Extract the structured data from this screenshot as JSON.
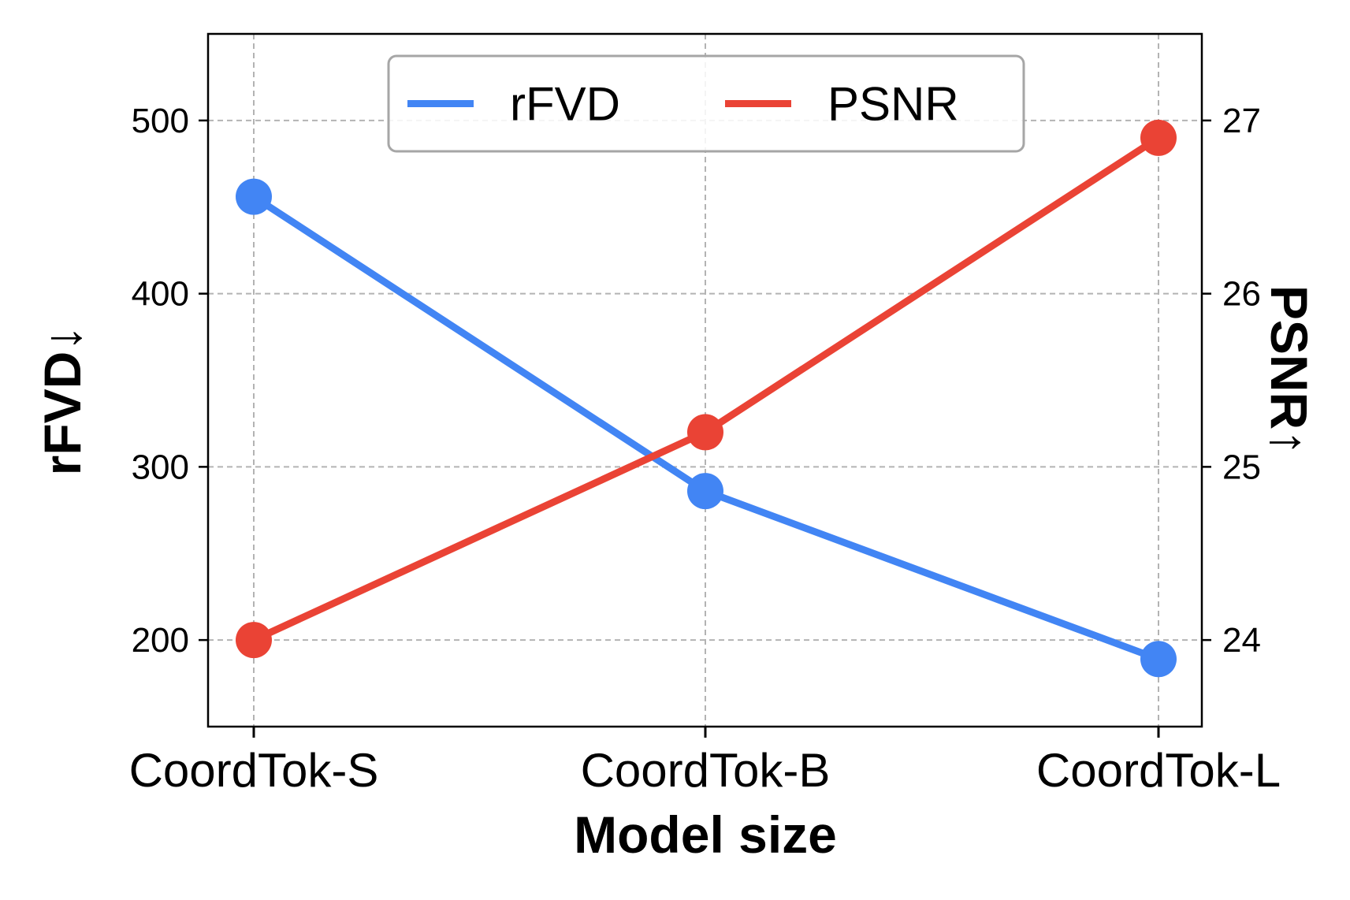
{
  "chart_data": {
    "type": "line",
    "title": "",
    "xlabel": "Model size",
    "categories": [
      "CoordTok-S",
      "CoordTok-B",
      "CoordTok-L"
    ],
    "y_left": {
      "label": "rFVD↓",
      "ylim": [
        150,
        550
      ],
      "ticks": [
        200,
        300,
        400,
        500
      ],
      "tick_labels": [
        "200",
        "300",
        "400",
        "500"
      ]
    },
    "y_right": {
      "label": "PSNR↑",
      "ylim": [
        23.5,
        27.5
      ],
      "ticks": [
        24,
        25,
        26,
        27
      ],
      "tick_labels": [
        "24",
        "25",
        "26",
        "27"
      ]
    },
    "series": [
      {
        "name": "rFVD",
        "axis": "left",
        "color": "#4285f4",
        "values": [
          456,
          286,
          189
        ]
      },
      {
        "name": "PSNR",
        "axis": "right",
        "color": "#ea4335",
        "values": [
          24.0,
          25.2,
          26.9
        ]
      }
    ],
    "grid": true,
    "legend": {
      "placement": "top-center",
      "columns": 2
    }
  }
}
